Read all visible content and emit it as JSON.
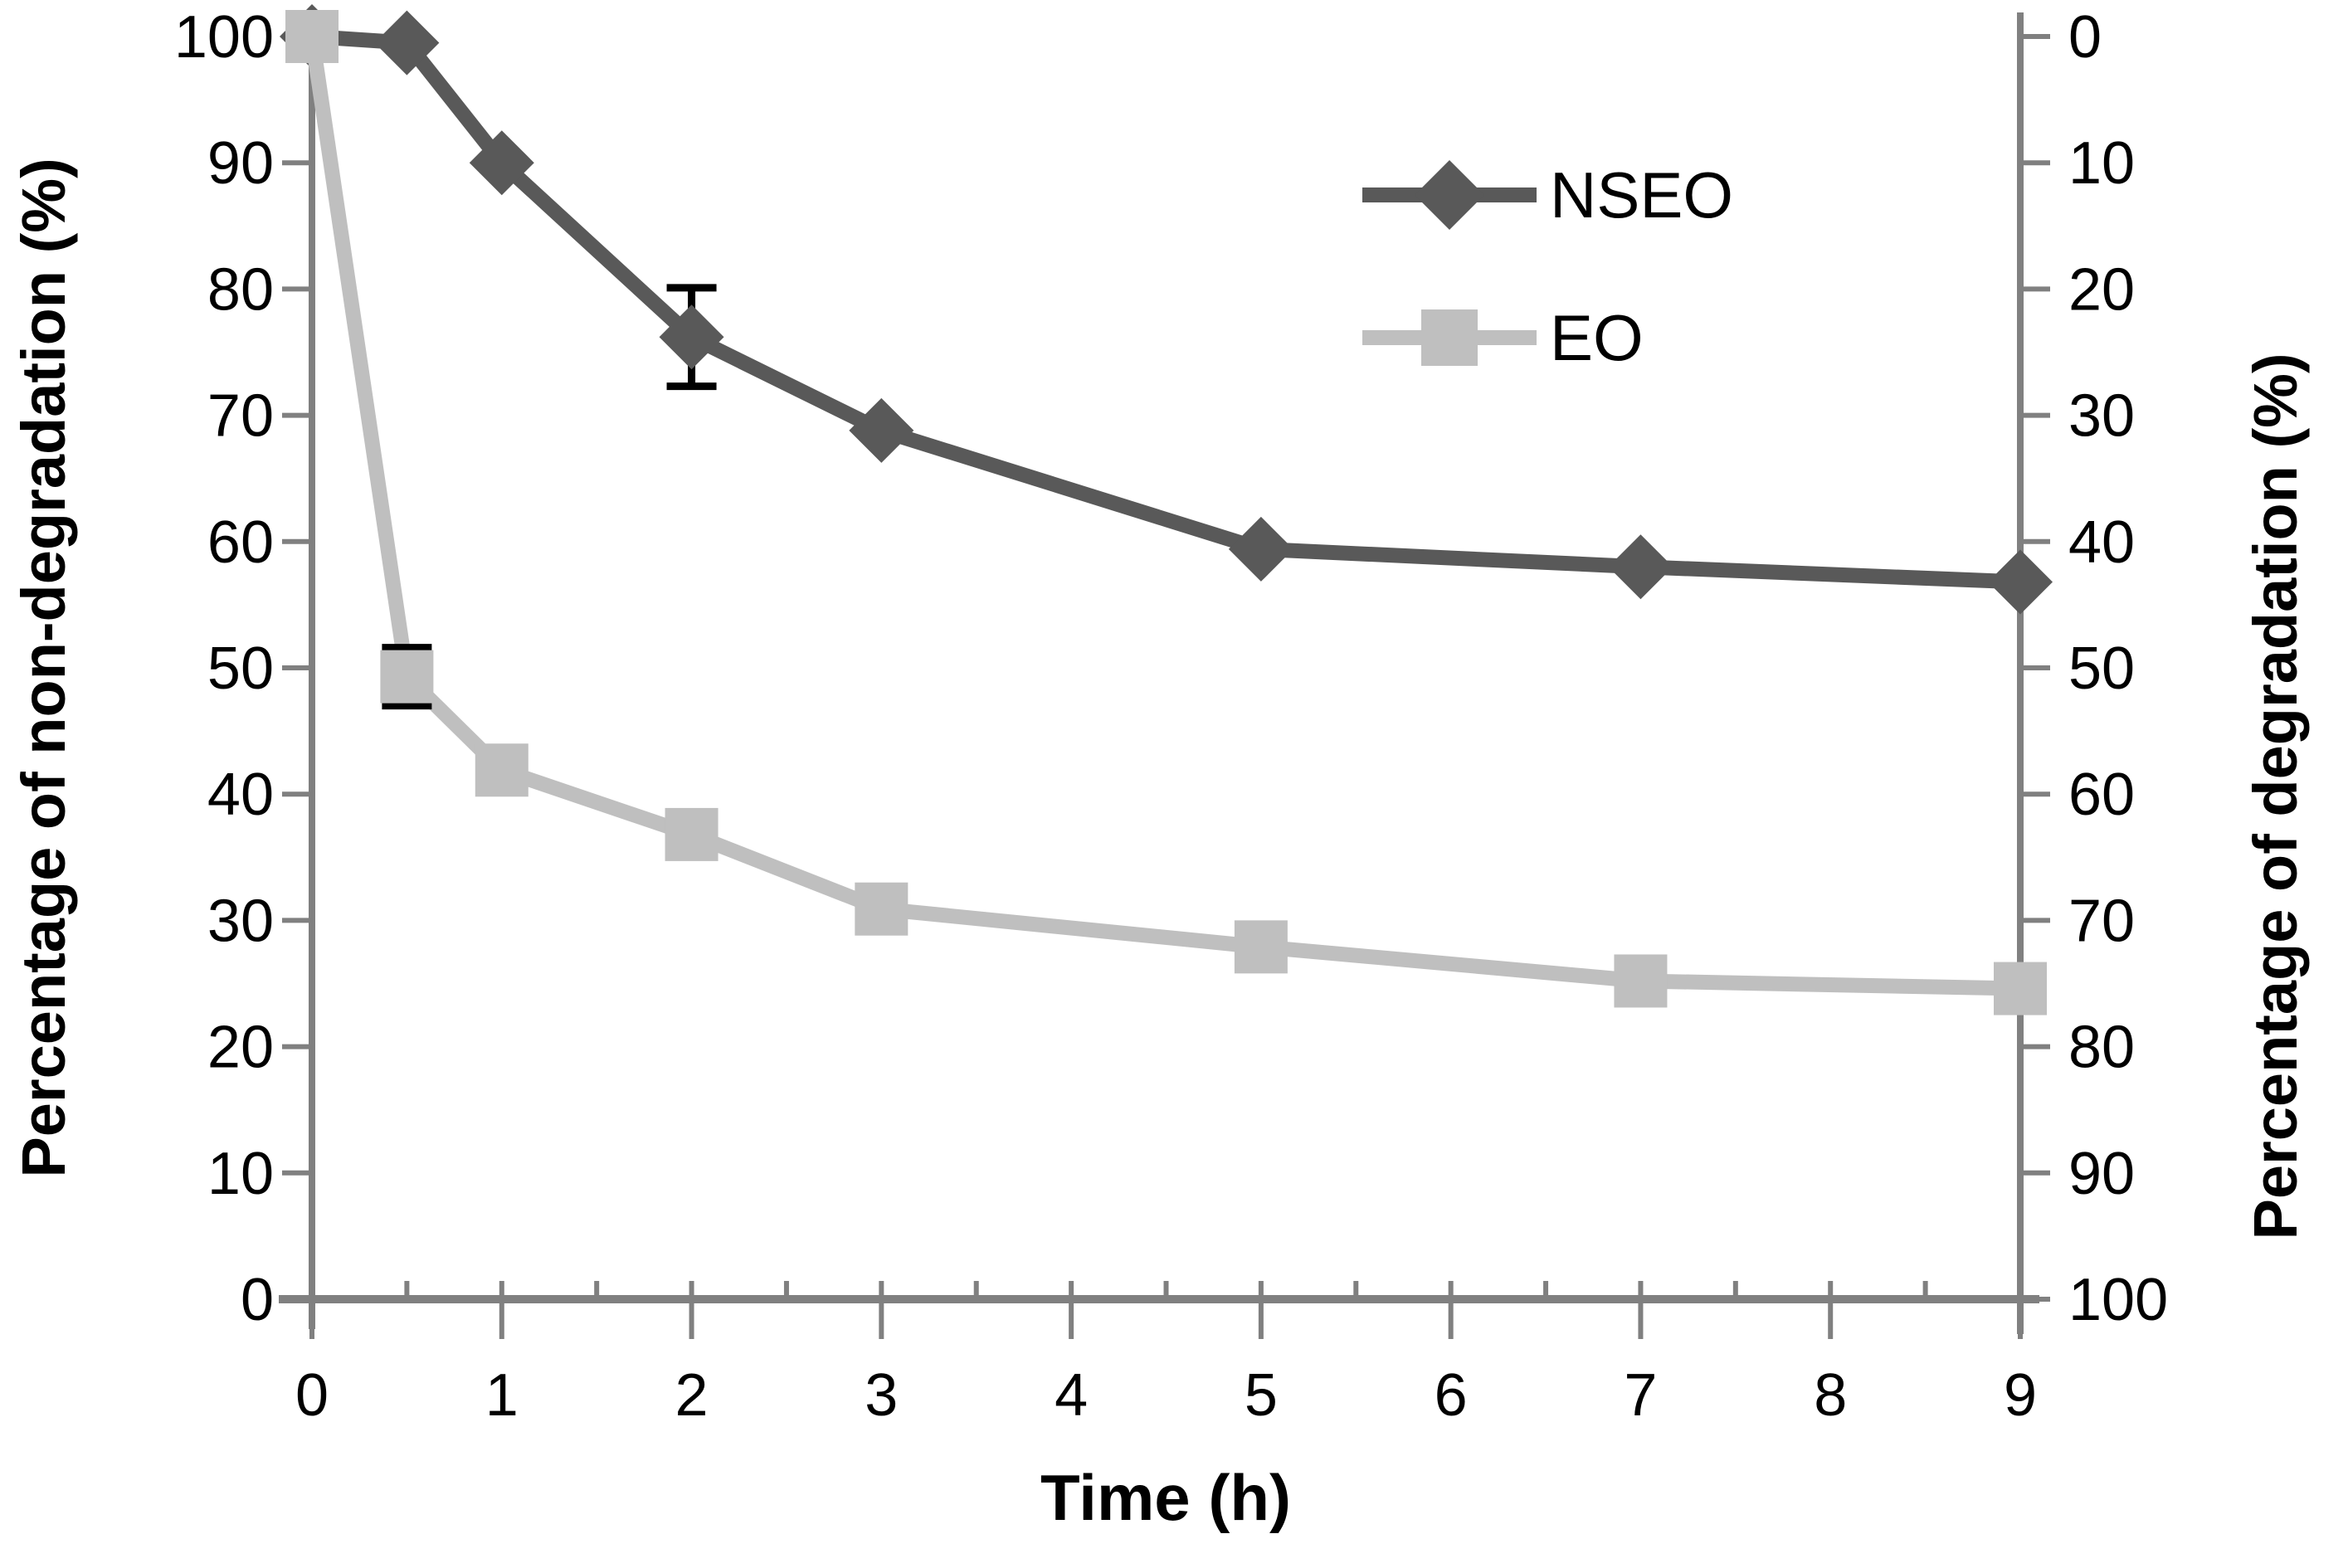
{
  "chart_data": {
    "type": "line",
    "title": "",
    "xlabel": "Time (h)",
    "ylabel_left": "Percentage of non-degradation (%)",
    "ylabel_right": "Percentage of degradation (%)",
    "x": [
      0,
      0.5,
      1,
      2,
      3,
      5,
      7,
      9
    ],
    "xlim": [
      0,
      9
    ],
    "ylim_left": [
      0,
      100
    ],
    "ylim_right_top_to_bottom": [
      0,
      100
    ],
    "right_axis_inverted": true,
    "left_ticks": [
      0,
      10,
      20,
      30,
      40,
      50,
      60,
      70,
      80,
      90,
      100
    ],
    "right_ticks": [
      0,
      10,
      20,
      30,
      40,
      50,
      60,
      70,
      80,
      90,
      100
    ],
    "x_major_ticks": [
      0,
      1,
      2,
      3,
      4,
      5,
      6,
      7,
      8,
      9
    ],
    "x_minor_tick_step": 0.5,
    "grid": false,
    "legend_position": "top-right-inside",
    "series": [
      {
        "name": "NSEO",
        "marker": "diamond",
        "color": "#595959",
        "values": [
          100,
          99.5,
          90,
          76.2,
          68.8,
          59.4,
          58,
          56.8
        ],
        "error_bars": [
          {
            "x": 2,
            "value": 76.2,
            "plus": 3.9,
            "minus": 3.9
          }
        ]
      },
      {
        "name": "EO",
        "marker": "square",
        "color": "#bfbfbf",
        "values": [
          100,
          49.3,
          41.9,
          36.8,
          30.9,
          27.9,
          25.2,
          24.6
        ],
        "error_bars": [
          {
            "x": 0.5,
            "value": 49.3,
            "plus": 2.3,
            "minus": 2.3
          }
        ]
      }
    ],
    "colors": {
      "axis": "#808080",
      "error_bar": "#000000",
      "text": "#000000",
      "background": "#ffffff"
    }
  }
}
